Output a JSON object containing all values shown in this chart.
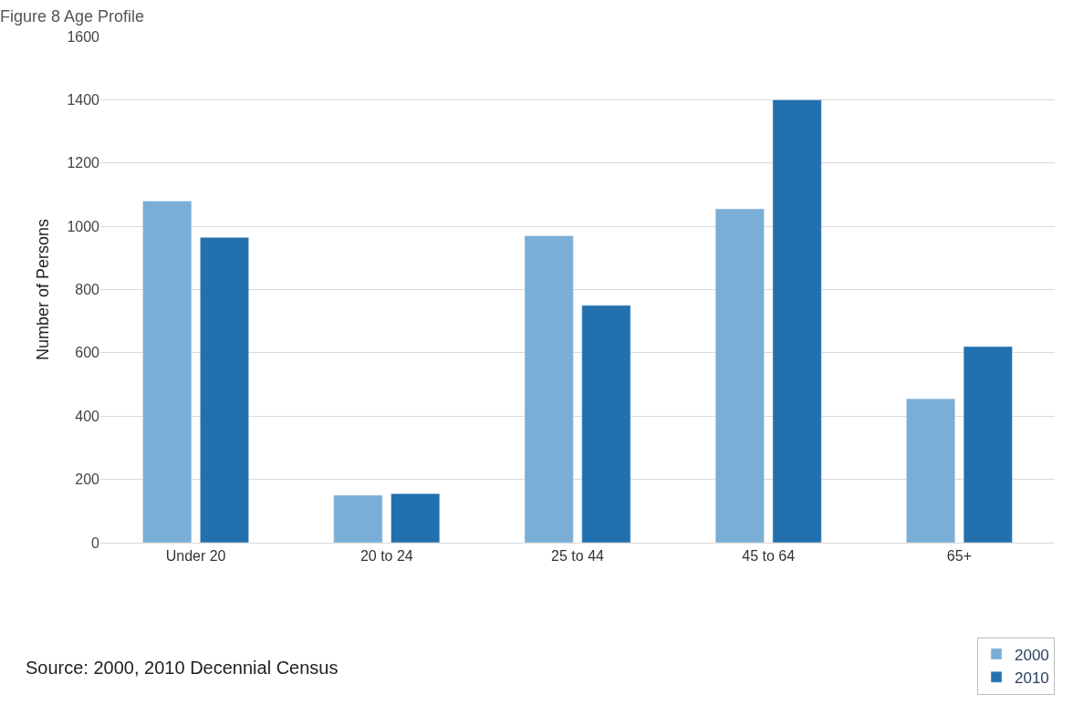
{
  "chart_data": {
    "type": "bar",
    "title": "Figure 8 Age Profile",
    "ylabel": "Number of Persons",
    "categories": [
      "Under 20",
      "20 to 24",
      "25 to 44",
      "45 to 64",
      "65+"
    ],
    "series": [
      {
        "name": "2000",
        "color": "#7aaed6",
        "values": [
          1080,
          150,
          970,
          1055,
          455
        ]
      },
      {
        "name": "2010",
        "color": "#2370ae",
        "values": [
          965,
          155,
          750,
          1400,
          620
        ]
      }
    ],
    "ylim": [
      0,
      1600
    ],
    "yticks": [
      0,
      200,
      400,
      600,
      800,
      1000,
      1200,
      1400,
      1600
    ],
    "grid": "y",
    "legend": "bottom right",
    "annotations": [
      "Source: 2000, 2010 Decennial Census"
    ]
  }
}
